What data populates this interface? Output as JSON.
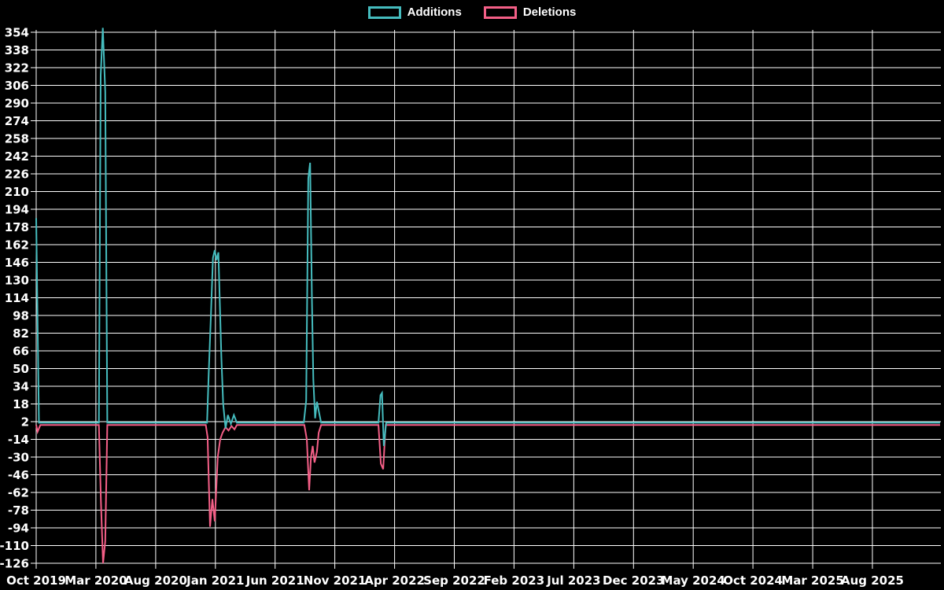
{
  "chart_data": {
    "type": "line",
    "title": "",
    "grid": true,
    "legend_position": "top-center",
    "background": "#000000",
    "colors": {
      "grid": "#ffffff",
      "text": "#ffffff"
    },
    "x_axis": {
      "unit": "months since Oct 2019",
      "range_months": [
        0,
        75.66
      ],
      "ticks": [
        {
          "label": "Oct 2019",
          "m": 0
        },
        {
          "label": "Mar 2020",
          "m": 5
        },
        {
          "label": "Aug 2020",
          "m": 10
        },
        {
          "label": "Jan 2021",
          "m": 15
        },
        {
          "label": "Jun 2021",
          "m": 20
        },
        {
          "label": "Nov 2021",
          "m": 25
        },
        {
          "label": "Apr 2022",
          "m": 30
        },
        {
          "label": "Sep 2022",
          "m": 35
        },
        {
          "label": "Feb 2023",
          "m": 40
        },
        {
          "label": "Jul 2023",
          "m": 45
        },
        {
          "label": "Dec 2023",
          "m": 50
        },
        {
          "label": "May 2024",
          "m": 55
        },
        {
          "label": "Oct 2024",
          "m": 60
        },
        {
          "label": "Mar 2025",
          "m": 65
        },
        {
          "label": "Aug 2025",
          "m": 70
        }
      ]
    },
    "y_axis": {
      "min": -126,
      "max": 354,
      "step": 16,
      "ticks": [
        354,
        338,
        322,
        306,
        290,
        274,
        258,
        242,
        226,
        210,
        194,
        178,
        162,
        146,
        130,
        114,
        98,
        82,
        66,
        50,
        34,
        18,
        2,
        -14,
        -30,
        -46,
        -62,
        -78,
        -94,
        -110,
        -126
      ]
    },
    "series": [
      {
        "name": "Additions",
        "color": "#45bcbe",
        "points": [
          [
            0,
            186
          ],
          [
            0.23,
            1
          ],
          [
            5.25,
            1
          ],
          [
            5.4,
            315
          ],
          [
            5.58,
            358
          ],
          [
            5.78,
            300
          ],
          [
            5.95,
            1
          ],
          [
            14.3,
            1
          ],
          [
            14.45,
            47
          ],
          [
            14.62,
            96
          ],
          [
            14.8,
            150
          ],
          [
            14.95,
            157
          ],
          [
            15.1,
            148
          ],
          [
            15.25,
            155
          ],
          [
            15.5,
            60
          ],
          [
            15.65,
            18
          ],
          [
            15.85,
            -4
          ],
          [
            16.05,
            8
          ],
          [
            16.3,
            0
          ],
          [
            16.55,
            8
          ],
          [
            16.8,
            1
          ],
          [
            22.4,
            1
          ],
          [
            22.6,
            21
          ],
          [
            22.78,
            222
          ],
          [
            22.93,
            236
          ],
          [
            23.08,
            113
          ],
          [
            23.2,
            40
          ],
          [
            23.35,
            5
          ],
          [
            23.5,
            20
          ],
          [
            23.65,
            12
          ],
          [
            23.85,
            1
          ],
          [
            28.65,
            1
          ],
          [
            28.82,
            26
          ],
          [
            28.95,
            28
          ],
          [
            29.1,
            -20
          ],
          [
            29.3,
            1
          ],
          [
            75.66,
            1
          ]
        ]
      },
      {
        "name": "Deletions",
        "color": "#f45f87",
        "points": [
          [
            0,
            -1
          ],
          [
            0.12,
            -7
          ],
          [
            0.35,
            -1
          ],
          [
            5.25,
            -1
          ],
          [
            5.42,
            -70
          ],
          [
            5.6,
            -126
          ],
          [
            5.78,
            -106
          ],
          [
            5.95,
            -1
          ],
          [
            14.2,
            -1
          ],
          [
            14.35,
            -12
          ],
          [
            14.55,
            -93
          ],
          [
            14.75,
            -68
          ],
          [
            14.95,
            -88
          ],
          [
            15.2,
            -30
          ],
          [
            15.4,
            -14
          ],
          [
            15.6,
            -8
          ],
          [
            15.85,
            -3
          ],
          [
            16.1,
            -6
          ],
          [
            16.35,
            -2
          ],
          [
            16.6,
            -5
          ],
          [
            16.8,
            -1
          ],
          [
            22.45,
            -1
          ],
          [
            22.65,
            -14
          ],
          [
            22.85,
            -60
          ],
          [
            23.0,
            -30
          ],
          [
            23.15,
            -20
          ],
          [
            23.3,
            -35
          ],
          [
            23.5,
            -25
          ],
          [
            23.65,
            -8
          ],
          [
            23.85,
            -1
          ],
          [
            28.65,
            -1
          ],
          [
            28.85,
            -36
          ],
          [
            29.05,
            -41
          ],
          [
            29.25,
            -1
          ],
          [
            75.66,
            -1
          ]
        ]
      }
    ]
  }
}
